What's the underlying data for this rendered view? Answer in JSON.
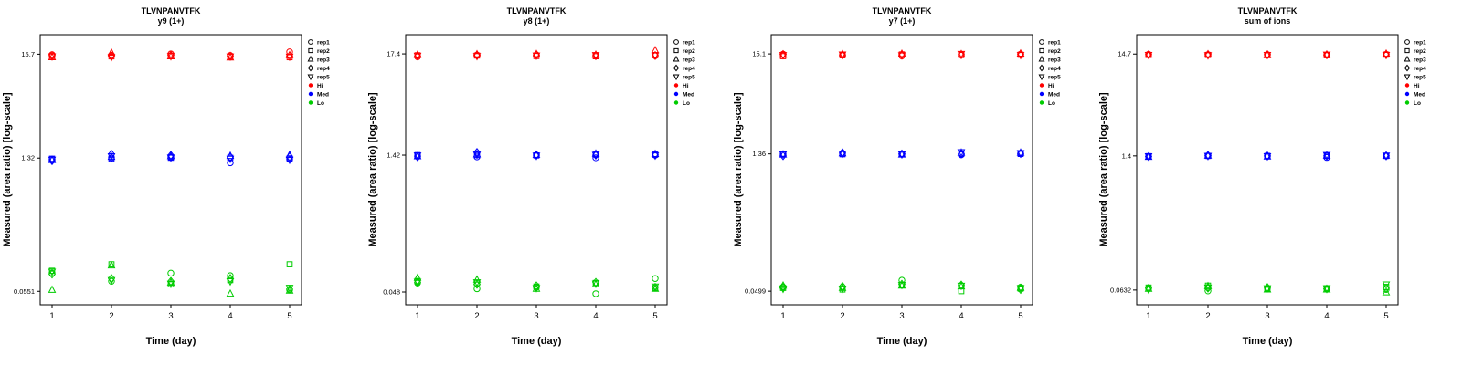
{
  "legend": {
    "reps": [
      {
        "label": "rep1",
        "marker": "circle"
      },
      {
        "label": "rep2",
        "marker": "square"
      },
      {
        "label": "rep3",
        "marker": "triangle-up"
      },
      {
        "label": "rep4",
        "marker": "diamond"
      },
      {
        "label": "rep5",
        "marker": "triangle-down"
      }
    ],
    "groups": [
      {
        "label": "Hi",
        "color": "#FF0000"
      },
      {
        "label": "Med",
        "color": "#0000FF"
      },
      {
        "label": "Lo",
        "color": "#00CC00"
      }
    ]
  },
  "chart_data": [
    {
      "type": "scatter",
      "title": "TLVNPANVTFK",
      "subtitle": "y9 (1+)",
      "xlabel": "Time (day)",
      "ylabel": "Measured (area ratio) [log-scale]",
      "xticks": [
        1,
        2,
        3,
        4,
        5
      ],
      "xlim": [
        0.8,
        5.2
      ],
      "ylim": [
        0.04,
        25
      ],
      "yscale": "log",
      "yticks": [
        {
          "value": 15.7,
          "label": "15.7"
        },
        {
          "value": 1.32,
          "label": "1.32"
        },
        {
          "value": 0.0551,
          "label": "0.0551"
        }
      ],
      "groups": [
        {
          "name": "Hi",
          "color": "#FF0000",
          "values": [
            [
              15.5,
              15.0,
              14.6,
              15.2,
              14.9
            ],
            [
              15.3,
              14.9,
              16.2,
              15.0,
              14.7
            ],
            [
              15.8,
              15.1,
              14.9,
              15.3,
              15.0
            ],
            [
              15.2,
              14.8,
              14.5,
              15.0,
              14.9
            ],
            [
              16.6,
              14.6,
              15.3,
              15.0,
              14.8
            ]
          ]
        },
        {
          "name": "Med",
          "color": "#0000FF",
          "values": [
            [
              1.28,
              1.3,
              1.26,
              1.24,
              1.27
            ],
            [
              1.33,
              1.3,
              1.36,
              1.45,
              1.38
            ],
            [
              1.35,
              1.33,
              1.38,
              1.41,
              1.34
            ],
            [
              1.18,
              1.33,
              1.39,
              1.35,
              1.3
            ],
            [
              1.28,
              1.31,
              1.42,
              1.36,
              1.27
            ]
          ]
        },
        {
          "name": "Lo",
          "color": "#00CC00",
          "values": [
            [
              0.085,
              0.09,
              0.057,
              0.083,
              0.088
            ],
            [
              0.07,
              0.105,
              0.102,
              0.075,
              0.072
            ],
            [
              0.085,
              0.065,
              0.068,
              0.07,
              0.066
            ],
            [
              0.08,
              0.072,
              0.052,
              0.075,
              0.07
            ],
            [
              0.057,
              0.105,
              0.056,
              0.058,
              0.06
            ]
          ]
        }
      ]
    },
    {
      "type": "scatter",
      "title": "TLVNPANVTFK",
      "subtitle": "y8 (1+)",
      "xlabel": "Time (day)",
      "ylabel": "Measured (area ratio) [log-scale]",
      "xticks": [
        1,
        2,
        3,
        4,
        5
      ],
      "xlim": [
        0.8,
        5.2
      ],
      "ylim": [
        0.035,
        28
      ],
      "yscale": "log",
      "yticks": [
        {
          "value": 17.4,
          "label": "17.4"
        },
        {
          "value": 1.42,
          "label": "1.42"
        },
        {
          "value": 0.048,
          "label": "0.048"
        }
      ],
      "groups": [
        {
          "name": "Hi",
          "color": "#FF0000",
          "values": [
            [
              16.2,
              16.8,
              17.0,
              16.5,
              16.6
            ],
            [
              16.9,
              16.7,
              17.2,
              16.8,
              16.5
            ],
            [
              17.0,
              16.5,
              17.3,
              16.9,
              16.7
            ],
            [
              16.8,
              16.4,
              17.0,
              16.6,
              16.9
            ],
            [
              16.6,
              16.9,
              19.0,
              16.7,
              16.8
            ]
          ]
        },
        {
          "name": "Med",
          "color": "#0000FF",
          "values": [
            [
              1.4,
              1.42,
              1.38,
              1.36,
              1.41
            ],
            [
              1.36,
              1.42,
              1.45,
              1.52,
              1.44
            ],
            [
              1.42,
              1.41,
              1.43,
              1.42,
              1.4
            ],
            [
              1.33,
              1.44,
              1.47,
              1.42,
              1.43
            ],
            [
              1.42,
              1.44,
              1.46,
              1.43,
              1.41
            ]
          ]
        },
        {
          "name": "Lo",
          "color": "#00CC00",
          "values": [
            [
              0.06,
              0.063,
              0.068,
              0.061,
              0.062
            ],
            [
              0.052,
              0.06,
              0.065,
              0.058,
              0.061
            ],
            [
              0.054,
              0.055,
              0.052,
              0.056,
              0.053
            ],
            [
              0.046,
              0.06,
              0.058,
              0.061,
              0.059
            ],
            [
              0.067,
              0.053,
              0.052,
              0.054,
              0.055
            ]
          ]
        }
      ]
    },
    {
      "type": "scatter",
      "title": "TLVNPANVTFK",
      "subtitle": "y7 (1+)",
      "xlabel": "Time (day)",
      "ylabel": "Measured (area ratio) [log-scale]",
      "xticks": [
        1,
        2,
        3,
        4,
        5
      ],
      "xlim": [
        0.8,
        5.2
      ],
      "ylim": [
        0.036,
        24
      ],
      "yscale": "log",
      "yticks": [
        {
          "value": 15.1,
          "label": "15.1"
        },
        {
          "value": 1.36,
          "label": "1.36"
        },
        {
          "value": 0.0499,
          "label": "0.0499"
        }
      ],
      "groups": [
        {
          "name": "Hi",
          "color": "#FF0000",
          "values": [
            [
              15.0,
              14.3,
              14.8,
              14.9,
              14.7
            ],
            [
              14.8,
              14.6,
              15.0,
              14.7,
              14.9
            ],
            [
              14.4,
              14.9,
              15.1,
              14.8,
              14.6
            ],
            [
              14.9,
              14.7,
              15.0,
              14.8,
              15.1
            ],
            [
              15.0,
              14.8,
              15.2,
              14.9,
              14.7
            ]
          ]
        },
        {
          "name": "Med",
          "color": "#0000FF",
          "values": [
            [
              1.35,
              1.36,
              1.34,
              1.3,
              1.35
            ],
            [
              1.36,
              1.35,
              1.38,
              1.4,
              1.37
            ],
            [
              1.35,
              1.36,
              1.34,
              1.36,
              1.35
            ],
            [
              1.33,
              1.36,
              1.4,
              1.36,
              1.42
            ],
            [
              1.38,
              1.36,
              1.4,
              1.37,
              1.39
            ]
          ]
        },
        {
          "name": "Lo",
          "color": "#00CC00",
          "values": [
            [
              0.055,
              0.054,
              0.057,
              0.056,
              0.053
            ],
            [
              0.055,
              0.052,
              0.054,
              0.056,
              0.053
            ],
            [
              0.065,
              0.058,
              0.057,
              0.059,
              0.058
            ],
            [
              0.057,
              0.05,
              0.056,
              0.058,
              0.057
            ],
            [
              0.055,
              0.053,
              0.054,
              0.052,
              0.054
            ]
          ]
        }
      ]
    },
    {
      "type": "scatter",
      "title": "TLVNPANVTFK",
      "subtitle": "sum of ions",
      "xlabel": "Time (day)",
      "ylabel": "Measured (area ratio) [log-scale]",
      "xticks": [
        1,
        2,
        3,
        4,
        5
      ],
      "xlim": [
        0.8,
        5.2
      ],
      "ylim": [
        0.045,
        23
      ],
      "yscale": "log",
      "yticks": [
        {
          "value": 14.7,
          "label": "14.7"
        },
        {
          "value": 1.4,
          "label": "1.4"
        },
        {
          "value": 0.0632,
          "label": "0.0632"
        }
      ],
      "groups": [
        {
          "name": "Hi",
          "color": "#FF0000",
          "values": [
            [
              14.6,
              14.4,
              14.5,
              14.5,
              14.4
            ],
            [
              14.5,
              14.4,
              14.6,
              14.5,
              14.3
            ],
            [
              14.5,
              14.4,
              14.3,
              14.5,
              14.4
            ],
            [
              14.4,
              14.3,
              14.5,
              14.4,
              14.5
            ],
            [
              14.6,
              14.5,
              14.8,
              14.5,
              14.4
            ]
          ]
        },
        {
          "name": "Med",
          "color": "#0000FF",
          "values": [
            [
              1.38,
              1.39,
              1.37,
              1.38,
              1.39
            ],
            [
              1.4,
              1.4,
              1.41,
              1.42,
              1.4
            ],
            [
              1.39,
              1.4,
              1.38,
              1.4,
              1.39
            ],
            [
              1.35,
              1.4,
              1.41,
              1.4,
              1.43
            ],
            [
              1.4,
              1.4,
              1.41,
              1.4,
              1.41
            ]
          ]
        },
        {
          "name": "Lo",
          "color": "#00CC00",
          "values": [
            [
              0.066,
              0.067,
              0.065,
              0.066,
              0.064
            ],
            [
              0.062,
              0.07,
              0.069,
              0.066,
              0.067
            ],
            [
              0.066,
              0.065,
              0.064,
              0.067,
              0.066
            ],
            [
              0.065,
              0.066,
              0.064,
              0.065,
              0.066
            ],
            [
              0.064,
              0.068,
              0.06,
              0.066,
              0.072
            ]
          ]
        }
      ]
    }
  ]
}
